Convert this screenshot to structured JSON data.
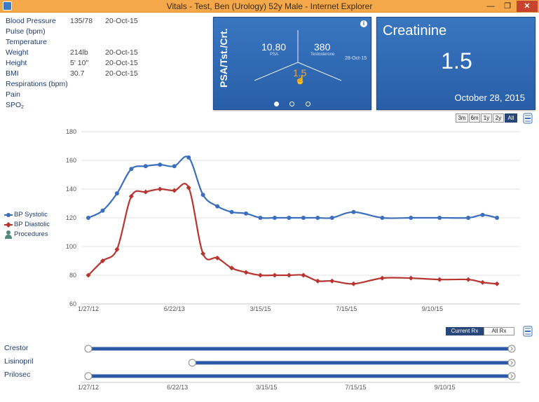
{
  "window": {
    "title": "Vitals - Test, Ben (Urology) 52y Male - Internet Explorer",
    "min_glyph": "—",
    "max_glyph": "❐",
    "close_glyph": "✕",
    "icon": "ie-app-icon"
  },
  "vitals": [
    {
      "label": "Blood Pressure",
      "value": "135/78",
      "date": "20-Oct-15"
    },
    {
      "label": "Pulse (bpm)",
      "value": "",
      "date": ""
    },
    {
      "label": "Temperature",
      "value": "",
      "date": ""
    },
    {
      "label": "Weight",
      "value": "214lb",
      "date": "20-Oct-15"
    },
    {
      "label": "Height",
      "value": "5' 10\"",
      "date": "20-Oct-15"
    },
    {
      "label": "BMI",
      "value": "30.7",
      "date": "20-Oct-15"
    },
    {
      "label": "Respirations (bpm)",
      "value": "",
      "date": ""
    },
    {
      "label": "Pain",
      "value": "",
      "date": ""
    },
    {
      "label": "SPO",
      "sub": "2",
      "value": "",
      "date": ""
    }
  ],
  "psa_card": {
    "vertical_title": "PSA/Tst./Crt.",
    "info_glyph": "i",
    "psa_value": "10.80",
    "psa_label": "PSA",
    "testosterone_value": "380",
    "testosterone_label": "Testosterone",
    "date": "28-Oct-15",
    "crt_value": "1.5",
    "cursor_glyph": "☝",
    "active_page": 0,
    "pages": 3
  },
  "creatinine_card": {
    "title": "Creatinine",
    "value": "1.5",
    "date": "October 28, 2015"
  },
  "range_buttons": [
    {
      "label": "3m",
      "active": false
    },
    {
      "label": "6m",
      "active": false
    },
    {
      "label": "1y",
      "active": false
    },
    {
      "label": "2y",
      "active": false
    },
    {
      "label": "All",
      "active": true
    }
  ],
  "legend": [
    {
      "label": "BP Systolic",
      "color": "#3b6fbd",
      "icon": "circle-marker-icon"
    },
    {
      "label": "BP Diastolic",
      "color": "#b8352f",
      "icon": "diamond-marker-icon"
    },
    {
      "label": "Procedures",
      "color": "#4f8a7a",
      "icon": "person-icon"
    }
  ],
  "chart_data": {
    "type": "line",
    "x_tick_labels": [
      "1/27/12",
      "6/22/13",
      "3/15/15",
      "7/15/15",
      "9/10/15"
    ],
    "y_tick_labels": [
      "60",
      "80",
      "100",
      "120",
      "140",
      "160",
      "180"
    ],
    "ylim": [
      60,
      180
    ],
    "grid": true,
    "legend_placement": "left",
    "x_positions_note": "points are indexed in sequence, ticks fall on indices 0, 6, 12, 18, 24",
    "series": [
      {
        "name": "BP Systolic",
        "color": "#3b6fbd",
        "values": [
          120,
          125,
          137,
          154,
          156,
          157,
          156,
          162,
          136,
          128,
          124,
          123,
          120,
          120,
          120,
          120,
          120,
          120,
          124,
          120,
          120,
          120,
          120,
          122,
          120
        ]
      },
      {
        "name": "BP Diastolic",
        "color": "#b8352f",
        "values": [
          80,
          90,
          98,
          135,
          138,
          140,
          139,
          141,
          95,
          92,
          85,
          82,
          80,
          80,
          80,
          80,
          76,
          76,
          74,
          78,
          78,
          77,
          77,
          75,
          74
        ]
      }
    ],
    "x_index": [
      0,
      1,
      2,
      3,
      4,
      5,
      6,
      7,
      8,
      9,
      10,
      11,
      12,
      13,
      14,
      15,
      16,
      17,
      18.5,
      20.5,
      22.5,
      24.5,
      26.5,
      27.5,
      28.5
    ],
    "x_tick_index": [
      0,
      6,
      12,
      18,
      24
    ]
  },
  "rx": {
    "tabs": [
      {
        "label": "Current Rx",
        "active": true
      },
      {
        "label": "All Rx",
        "active": false
      }
    ],
    "medications": [
      {
        "name": "Crestor",
        "start_index": 0,
        "end_index": 28.5
      },
      {
        "name": "Lisinopril",
        "start_index": 7,
        "end_index": 28.5
      },
      {
        "name": "Prilosec",
        "start_index": 0,
        "end_index": 28.5
      }
    ],
    "bar_color": "#2a5aa6"
  }
}
